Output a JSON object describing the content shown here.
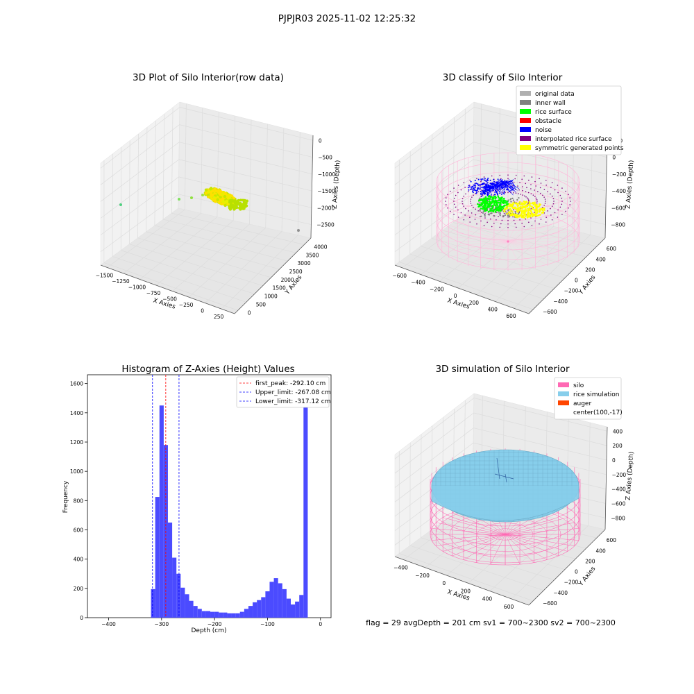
{
  "figure": {
    "suptitle": "PJPJR03 2025-11-02 12:25:32",
    "footer": "flag = 29  avgDepth = 201 cm  sv1 = 700~2300  sv2 = 700~2300"
  },
  "colors": {
    "grid": "#dcdcdc",
    "pane": "#f2f2f2",
    "hist_bar": "#4b4bff",
    "peak_line": "#ff0000",
    "limit_line": "#0000ff",
    "silo": "#ff69b4",
    "rice_sim": "#87ceeb",
    "auger": "#ff4500",
    "noise": "#0000ff",
    "rice_surface": "#00ff00",
    "symmetric": "#ffff00",
    "interpolated": "#800080",
    "inner_wall": "#808080",
    "original": "#b0b0b0"
  },
  "chart_data": [
    {
      "type": "scatter3d",
      "title": "3D Plot of Silo Interior(row data)",
      "xlabel": "X Axies",
      "ylabel": "Y Axies",
      "zlabel": "Z Axies (Depth)",
      "xticks": [
        "−1500",
        "−1250",
        "−1000",
        "−750",
        "−500",
        "−250",
        "0",
        "250"
      ],
      "yticks": [
        "0",
        "500",
        "1000",
        "1500",
        "2000",
        "2500",
        "3000",
        "3500",
        "4000"
      ],
      "zticks": [
        "0",
        "−500",
        "−1000",
        "−1500",
        "−2000",
        "−2500"
      ],
      "xlim": [
        -1600,
        300
      ],
      "ylim": [
        0,
        4000
      ],
      "zlim": [
        -2500,
        0
      ],
      "points_note": "dense cluster near x≈-250, y≈1500, z≈-1500 plus a few outliers"
    },
    {
      "type": "scatter3d",
      "title": "3D classify of Silo Interior",
      "xlabel": "X Axies",
      "ylabel": "Y Axies",
      "zlabel": "Z Axies (Depth)",
      "xticks": [
        "−600",
        "−400",
        "−200",
        "0",
        "200",
        "400",
        "600"
      ],
      "yticks": [
        "−600",
        "−400",
        "−200",
        "0",
        "200",
        "400",
        "600"
      ],
      "zticks": [
        "200",
        "0",
        "−200",
        "−400",
        "−600",
        "−800"
      ],
      "legend": [
        "original data",
        "inner wall",
        "rice surface",
        "obstacle",
        "noise",
        "interpolated rice surface",
        "symmetric generated points"
      ],
      "legend_colors": [
        "#b0b0b0",
        "#808080",
        "#00ff00",
        "#ff0000",
        "#0000ff",
        "#800080",
        "#ffff00"
      ]
    },
    {
      "type": "bar",
      "title": "Histogram of Z-Axies (Height) Values",
      "xlabel": "Depth (cm)",
      "ylabel": "Frequency",
      "xticks": [
        "−400",
        "−300",
        "−200",
        "−100",
        "0"
      ],
      "yticks": [
        "0",
        "200",
        "400",
        "600",
        "800",
        "1000",
        "1200",
        "1400",
        "1600"
      ],
      "xlim": [
        -440,
        20
      ],
      "ylim": [
        0,
        1660
      ],
      "bin_width": 8,
      "bins": [
        [
          -320,
          195
        ],
        [
          -312,
          825
        ],
        [
          -304,
          1450
        ],
        [
          -296,
          1180
        ],
        [
          -288,
          650
        ],
        [
          -280,
          410
        ],
        [
          -272,
          300
        ],
        [
          -264,
          205
        ],
        [
          -256,
          160
        ],
        [
          -248,
          115
        ],
        [
          -240,
          80
        ],
        [
          -232,
          60
        ],
        [
          -224,
          45
        ],
        [
          -216,
          45
        ],
        [
          -208,
          40
        ],
        [
          -200,
          40
        ],
        [
          -192,
          35
        ],
        [
          -184,
          35
        ],
        [
          -176,
          30
        ],
        [
          -168,
          30
        ],
        [
          -160,
          30
        ],
        [
          -152,
          40
        ],
        [
          -144,
          60
        ],
        [
          -136,
          80
        ],
        [
          -128,
          105
        ],
        [
          -120,
          120
        ],
        [
          -112,
          140
        ],
        [
          -104,
          180
        ],
        [
          -96,
          245
        ],
        [
          -88,
          270
        ],
        [
          -80,
          235
        ],
        [
          -72,
          195
        ],
        [
          -64,
          130
        ],
        [
          -56,
          90
        ],
        [
          -48,
          110
        ],
        [
          -40,
          155
        ],
        [
          -32,
          1600
        ]
      ],
      "vlines": [
        {
          "x": -292.1,
          "label": "first_peak: -292.10 cm",
          "color": "#ff0000"
        },
        {
          "x": -267.08,
          "label": "Upper_limit: -267.08 cm",
          "color": "#0000ff"
        },
        {
          "x": -317.12,
          "label": "Lower_limit: -317.12 cm",
          "color": "#0000ff"
        }
      ]
    },
    {
      "type": "surface3d",
      "title": "3D simulation of Silo Interior",
      "xlabel": "X Axies",
      "ylabel": "Y Axies",
      "zlabel": "Z Axies (Depth)",
      "xticks": [
        "−400",
        "−200",
        "0",
        "200",
        "400",
        "600"
      ],
      "yticks": [
        "−600",
        "−400",
        "−200",
        "0",
        "200",
        "400",
        "600"
      ],
      "zticks": [
        "400",
        "200",
        "0",
        "−200",
        "−400",
        "−600",
        "−800"
      ],
      "legend": [
        "silo",
        "rice simulation",
        "auger",
        "center(100,-17)"
      ],
      "legend_colors": [
        "#ff69b4",
        "#87ceeb",
        "#ff4500",
        ""
      ]
    }
  ]
}
